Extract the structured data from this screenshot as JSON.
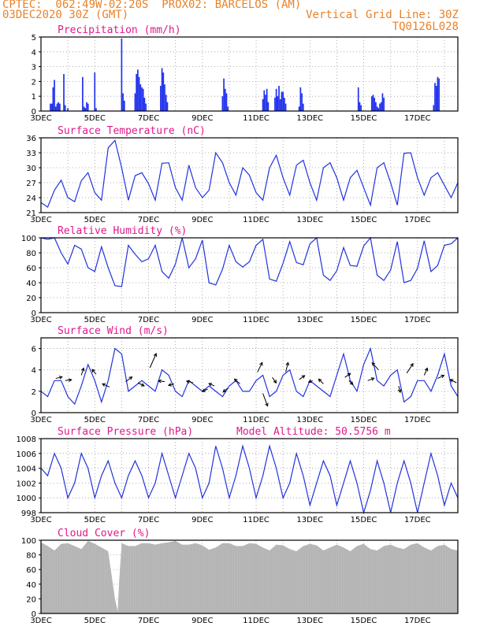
{
  "header": {
    "line1": "CPTEC:  062:49W-02:20S  PROX02: BARCELOS (AM)",
    "line2_left": "03DEC2020 30Z (GMT)",
    "line2_right": "Vertical Grid Line: 30Z",
    "line3_right": "TQ0126L028"
  },
  "colors": {
    "line": "#2233dd",
    "bar": "#2233ee",
    "cloud": "#b3b3b3",
    "title": "#e0198a",
    "header": "#e8822a"
  },
  "x_tick_labels": [
    "3DEC",
    "5DEC",
    "7DEC",
    "9DEC",
    "11DEC",
    "13DEC",
    "15DEC",
    "17DEC"
  ],
  "chart_data": [
    {
      "type": "bar",
      "title": "Precipitation (mm/h)",
      "ylim": [
        0,
        5
      ],
      "yticks": [
        0,
        1,
        2,
        3,
        4,
        5
      ],
      "x_unit": "days since 3DEC",
      "x": [
        0.35,
        0.4,
        0.45,
        0.5,
        0.55,
        0.6,
        0.65,
        0.7,
        0.85,
        0.9,
        1.0,
        1.55,
        1.6,
        1.65,
        1.7,
        1.75,
        2.0,
        2.05,
        3.0,
        3.05,
        3.1,
        3.5,
        3.55,
        3.6,
        3.65,
        3.7,
        3.75,
        3.8,
        3.85,
        3.9,
        4.45,
        4.5,
        4.55,
        4.6,
        4.65,
        4.7,
        6.75,
        6.8,
        6.85,
        6.9,
        6.95,
        8.25,
        8.3,
        8.35,
        8.4,
        8.45,
        8.7,
        8.75,
        8.8,
        8.85,
        8.9,
        8.95,
        9.0,
        9.05,
        9.1,
        9.6,
        9.65,
        9.7,
        9.75,
        11.8,
        11.85,
        11.9,
        12.3,
        12.35,
        12.4,
        12.45,
        12.5,
        12.55,
        12.6,
        12.65,
        12.7,
        12.75,
        14.6,
        14.65,
        14.7,
        14.75,
        14.8
      ],
      "values": [
        0.5,
        0.5,
        1.6,
        2.1,
        0.3,
        0.5,
        0.6,
        0.5,
        2.5,
        0.4,
        0.2,
        2.3,
        0.3,
        0.2,
        0.6,
        0.5,
        2.6,
        0.2,
        4.9,
        1.2,
        0.7,
        1.2,
        2.5,
        2.8,
        2.3,
        1.8,
        1.6,
        1.5,
        0.9,
        0.5,
        1.7,
        2.9,
        2.6,
        1.8,
        1.1,
        0.6,
        1.0,
        2.2,
        1.5,
        1.2,
        0.3,
        0.8,
        1.4,
        1.1,
        1.5,
        0.6,
        0.9,
        1.5,
        1.0,
        1.7,
        0.8,
        1.3,
        1.3,
        0.9,
        0.5,
        0.3,
        1.6,
        1.2,
        0.5,
        1.6,
        0.6,
        0.4,
        1.0,
        1.1,
        0.9,
        0.6,
        0.3,
        0.2,
        0.5,
        0.6,
        1.2,
        0.9,
        0.4,
        1.9,
        1.7,
        2.3,
        2.2
      ]
    },
    {
      "type": "line",
      "title": "Surface Temperature (nC)",
      "ylim": [
        21,
        36
      ],
      "yticks": [
        21,
        24,
        27,
        30,
        33,
        36
      ],
      "x_unit": "days since 3DEC",
      "x": [
        0,
        0.25,
        0.5,
        0.75,
        1.0,
        1.25,
        1.5,
        1.75,
        2.0,
        2.25,
        2.5,
        2.75,
        3.0,
        3.25,
        3.5,
        3.75,
        4.0,
        4.25,
        4.5,
        4.75,
        5.0,
        5.25,
        5.5,
        5.75,
        6.0,
        6.25,
        6.5,
        6.75,
        7.0,
        7.25,
        7.5,
        7.75,
        8.0,
        8.25,
        8.5,
        8.75,
        9.0,
        9.25,
        9.5,
        9.75,
        10.0,
        10.25,
        10.5,
        10.75,
        11.0,
        11.25,
        11.5,
        11.75,
        12.0,
        12.25,
        12.5,
        12.75,
        13.0,
        13.25,
        13.5,
        13.75,
        14.0,
        14.25,
        14.5,
        14.75,
        15.0,
        15.25,
        15.5
      ],
      "values": [
        23.0,
        22.1,
        25.5,
        27.5,
        24.0,
        23.2,
        27.4,
        29.0,
        25.0,
        23.5,
        34.0,
        35.5,
        30.0,
        23.5,
        28.4,
        29.0,
        26.8,
        23.5,
        30.9,
        31.0,
        26.0,
        23.5,
        30.5,
        26.0,
        24.0,
        25.5,
        33.0,
        31.0,
        27.0,
        24.5,
        30.0,
        28.5,
        25.0,
        23.5,
        30.0,
        32.5,
        28.0,
        24.5,
        30.5,
        31.5,
        27.0,
        23.5,
        30.0,
        31.0,
        28.0,
        23.5,
        28.0,
        29.5,
        26.0,
        22.5,
        30.0,
        31.0,
        27.0,
        22.5,
        32.9,
        33.0,
        28.0,
        24.5,
        28.0,
        29.0,
        26.5,
        24.0,
        27.0
      ]
    },
    {
      "type": "line",
      "title": "Relative Humidity (%)",
      "ylim": [
        0,
        100
      ],
      "yticks": [
        0,
        20,
        40,
        60,
        80,
        100
      ],
      "x_unit": "days since 3DEC",
      "x": [
        0,
        0.25,
        0.5,
        0.75,
        1.0,
        1.25,
        1.5,
        1.75,
        2.0,
        2.25,
        2.5,
        2.75,
        3.0,
        3.25,
        3.5,
        3.75,
        4.0,
        4.25,
        4.5,
        4.75,
        5.0,
        5.25,
        5.5,
        5.75,
        6.0,
        6.25,
        6.5,
        6.75,
        7.0,
        7.25,
        7.5,
        7.75,
        8.0,
        8.25,
        8.5,
        8.75,
        9.0,
        9.25,
        9.5,
        9.75,
        10.0,
        10.25,
        10.5,
        10.75,
        11.0,
        11.25,
        11.5,
        11.75,
        12.0,
        12.25,
        12.5,
        12.75,
        13.0,
        13.25,
        13.5,
        13.75,
        14.0,
        14.25,
        14.5,
        14.75,
        15.0,
        15.25,
        15.5
      ],
      "values": [
        100,
        98,
        100,
        80,
        65,
        90,
        85,
        60,
        55,
        88,
        60,
        36,
        35,
        90,
        78,
        68,
        72,
        90,
        55,
        46,
        65,
        100,
        60,
        72,
        97,
        40,
        37,
        58,
        90,
        68,
        61,
        68,
        90,
        98,
        45,
        42,
        66,
        95,
        67,
        64,
        92,
        100,
        50,
        43,
        56,
        87,
        63,
        62,
        89,
        100,
        50,
        43,
        57,
        95,
        40,
        43,
        59,
        96,
        55,
        63,
        90,
        92,
        100
      ]
    },
    {
      "type": "line",
      "title": "Surface Wind (m/s)",
      "ylim": [
        0,
        7
      ],
      "yticks": [
        0,
        2,
        4,
        6
      ],
      "x_unit": "days since 3DEC",
      "x": [
        0,
        0.25,
        0.5,
        0.75,
        1.0,
        1.25,
        1.5,
        1.75,
        2.0,
        2.25,
        2.5,
        2.75,
        3.0,
        3.25,
        3.5,
        3.75,
        4.0,
        4.25,
        4.5,
        4.75,
        5.0,
        5.25,
        5.5,
        5.75,
        6.0,
        6.25,
        6.5,
        6.75,
        7.0,
        7.25,
        7.5,
        7.75,
        8.0,
        8.25,
        8.5,
        8.75,
        9.0,
        9.25,
        9.5,
        9.75,
        10.0,
        10.25,
        10.5,
        10.75,
        11.0,
        11.25,
        11.5,
        11.75,
        12.0,
        12.25,
        12.5,
        12.75,
        13.0,
        13.25,
        13.5,
        13.75,
        14.0,
        14.25,
        14.5,
        14.75,
        15.0,
        15.25,
        15.5
      ],
      "values": [
        2.0,
        1.5,
        3.0,
        3.0,
        1.5,
        0.8,
        2.5,
        4.5,
        3.0,
        1.0,
        3.0,
        6.0,
        5.5,
        2.0,
        2.5,
        3.0,
        2.5,
        2.0,
        4.0,
        3.5,
        2.0,
        1.5,
        3.0,
        2.5,
        2.0,
        2.5,
        2.0,
        1.5,
        2.5,
        3.0,
        2.0,
        2.0,
        3.0,
        3.5,
        1.5,
        2.0,
        3.5,
        4.0,
        2.0,
        1.5,
        3.0,
        2.5,
        2.0,
        1.5,
        3.5,
        5.5,
        3.0,
        2.0,
        4.5,
        6.0,
        3.0,
        2.5,
        3.5,
        4.0,
        1.0,
        1.5,
        3.0,
        3.0,
        2.0,
        3.5,
        5.5,
        2.5,
        1.5
      ]
    },
    {
      "type": "line",
      "title": "Surface Pressure (hPa)",
      "annotation": "Model Altitude: 50.5756 m",
      "ylim": [
        998,
        1008
      ],
      "yticks": [
        998,
        1000,
        1002,
        1004,
        1006,
        1008
      ],
      "x_unit": "days since 3DEC",
      "x": [
        0,
        0.25,
        0.5,
        0.75,
        1.0,
        1.25,
        1.5,
        1.75,
        2.0,
        2.25,
        2.5,
        2.75,
        3.0,
        3.25,
        3.5,
        3.75,
        4.0,
        4.25,
        4.5,
        4.75,
        5.0,
        5.25,
        5.5,
        5.75,
        6.0,
        6.25,
        6.5,
        6.75,
        7.0,
        7.25,
        7.5,
        7.75,
        8.0,
        8.25,
        8.5,
        8.75,
        9.0,
        9.25,
        9.5,
        9.75,
        10.0,
        10.25,
        10.5,
        10.75,
        11.0,
        11.25,
        11.5,
        11.75,
        12.0,
        12.25,
        12.5,
        12.75,
        13.0,
        13.25,
        13.5,
        13.75,
        14.0,
        14.25,
        14.5,
        14.75,
        15.0,
        15.25,
        15.5
      ],
      "values": [
        1004,
        1003,
        1006,
        1004,
        1000,
        1002,
        1006,
        1004,
        1000,
        1003,
        1005,
        1002,
        1000,
        1003,
        1005,
        1003,
        1000,
        1002,
        1006,
        1003,
        1000,
        1003,
        1006,
        1004,
        1000,
        1002,
        1007,
        1004,
        1000,
        1003,
        1007,
        1004,
        1000,
        1003,
        1007,
        1004,
        1000,
        1002,
        1006,
        1003,
        999,
        1002,
        1005,
        1003,
        999,
        1002,
        1005,
        1002,
        998,
        1001,
        1005,
        1002,
        998,
        1002,
        1005,
        1002,
        998,
        1002,
        1006,
        1003,
        999,
        1002,
        1000
      ]
    },
    {
      "type": "area",
      "title": "Cloud Cover (%)",
      "ylim": [
        0,
        100
      ],
      "yticks": [
        0,
        20,
        40,
        60,
        80,
        100
      ],
      "x_unit": "days since 3DEC",
      "x": [
        0,
        0.25,
        0.5,
        0.75,
        1.0,
        1.25,
        1.5,
        1.75,
        2.0,
        2.25,
        2.5,
        2.75,
        2.85,
        2.9,
        3.0,
        3.25,
        3.5,
        3.75,
        4.0,
        4.25,
        4.5,
        4.75,
        5.0,
        5.25,
        5.5,
        5.75,
        6.0,
        6.25,
        6.5,
        6.75,
        7.0,
        7.25,
        7.5,
        7.75,
        8.0,
        8.25,
        8.5,
        8.75,
        9.0,
        9.25,
        9.5,
        9.75,
        10.0,
        10.25,
        10.5,
        10.75,
        11.0,
        11.25,
        11.5,
        11.75,
        12.0,
        12.25,
        12.5,
        12.75,
        13.0,
        13.25,
        13.5,
        13.75,
        14.0,
        14.25,
        14.5,
        14.75,
        15.0,
        15.25,
        15.5
      ],
      "values": [
        97,
        92,
        86,
        95,
        96,
        92,
        88,
        99,
        95,
        90,
        85,
        20,
        3,
        40,
        96,
        92,
        92,
        96,
        96,
        94,
        96,
        97,
        99,
        94,
        94,
        96,
        93,
        87,
        90,
        96,
        96,
        92,
        92,
        96,
        95,
        90,
        86,
        94,
        93,
        88,
        85,
        92,
        95,
        93,
        86,
        90,
        94,
        90,
        85,
        92,
        95,
        88,
        86,
        92,
        94,
        90,
        88,
        94,
        96,
        90,
        86,
        92,
        94,
        88,
        86
      ]
    }
  ],
  "wind_arrows": [
    {
      "x": 0.55,
      "y": 3.2,
      "u": 0.8,
      "v": 0.2
    },
    {
      "x": 0.9,
      "y": 3.0,
      "u": 0.8,
      "v": 0.1
    },
    {
      "x": 1.5,
      "y": 3.5,
      "u": 0.3,
      "v": 0.9
    },
    {
      "x": 2.05,
      "y": 3.6,
      "u": -0.5,
      "v": 0.6
    },
    {
      "x": 2.55,
      "y": 2.4,
      "u": -0.9,
      "v": 0.4
    },
    {
      "x": 3.15,
      "y": 2.9,
      "u": 0.8,
      "v": 0.6
    },
    {
      "x": 3.6,
      "y": 2.8,
      "u": 0.8,
      "v": -0.4
    },
    {
      "x": 4.05,
      "y": 4.2,
      "u": 0.8,
      "v": 1.8
    },
    {
      "x": 4.6,
      "y": 2.9,
      "u": -0.8,
      "v": 0.1
    },
    {
      "x": 4.95,
      "y": 2.7,
      "u": -0.7,
      "v": -0.2
    },
    {
      "x": 5.65,
      "y": 2.8,
      "u": -0.8,
      "v": 0.2
    },
    {
      "x": 6.2,
      "y": 2.2,
      "u": -0.7,
      "v": -0.3
    },
    {
      "x": 6.45,
      "y": 2.5,
      "u": -0.7,
      "v": 0.3
    },
    {
      "x": 6.95,
      "y": 2.3,
      "u": -0.6,
      "v": -0.5
    },
    {
      "x": 7.4,
      "y": 2.7,
      "u": -0.7,
      "v": 0.6
    },
    {
      "x": 8.05,
      "y": 3.8,
      "u": 0.6,
      "v": 1.2
    },
    {
      "x": 8.25,
      "y": 1.8,
      "u": 0.6,
      "v": -1.6
    },
    {
      "x": 8.6,
      "y": 3.3,
      "u": 0.5,
      "v": -0.7
    },
    {
      "x": 9.1,
      "y": 3.8,
      "u": 0.3,
      "v": 1.2
    },
    {
      "x": 9.6,
      "y": 3.1,
      "u": 0.7,
      "v": 0.5
    },
    {
      "x": 10.1,
      "y": 3.0,
      "u": -0.5,
      "v": -0.2
    },
    {
      "x": 10.5,
      "y": 2.7,
      "u": -0.6,
      "v": 0.6
    },
    {
      "x": 11.3,
      "y": 3.3,
      "u": 0.7,
      "v": 0.5
    },
    {
      "x": 11.45,
      "y": 3.0,
      "u": 0.5,
      "v": -0.5
    },
    {
      "x": 12.15,
      "y": 3.0,
      "u": 0.8,
      "v": 0.3
    },
    {
      "x": 12.55,
      "y": 4.0,
      "u": -0.8,
      "v": 0.9
    },
    {
      "x": 13.3,
      "y": 2.5,
      "u": 0.2,
      "v": -0.8
    },
    {
      "x": 13.6,
      "y": 3.7,
      "u": 0.8,
      "v": 1.2
    },
    {
      "x": 14.25,
      "y": 3.5,
      "u": 0.4,
      "v": 0.9
    },
    {
      "x": 14.75,
      "y": 3.2,
      "u": 0.8,
      "v": 0.4
    },
    {
      "x": 15.45,
      "y": 2.8,
      "u": -0.8,
      "v": 0.4
    }
  ]
}
